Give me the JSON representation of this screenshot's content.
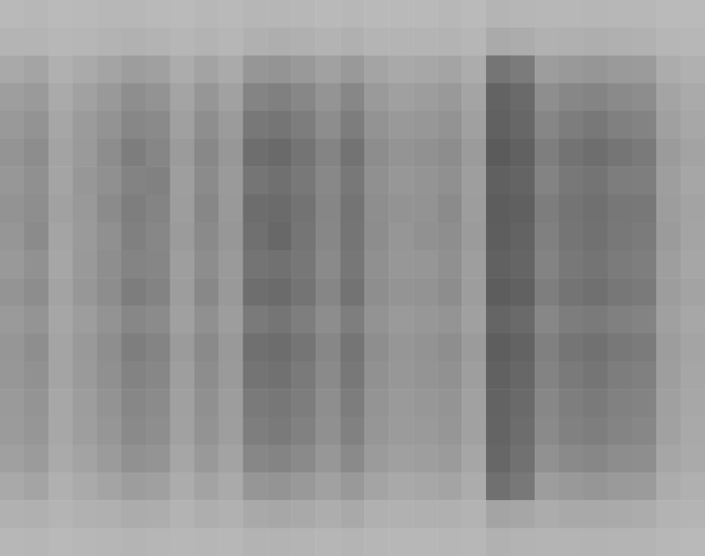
{
  "chart_data": {
    "type": "heatmap",
    "tick_labels": false,
    "grid": false,
    "color_range": [
      0,
      100
    ],
    "cells": [
      [
        16,
        17,
        15,
        16,
        17,
        17,
        16,
        15,
        17,
        16,
        18,
        18,
        17,
        16,
        17,
        16,
        16,
        16,
        17,
        15,
        19,
        18,
        17,
        17,
        18,
        17,
        17,
        15,
        15
      ],
      [
        19,
        19,
        17,
        18,
        20,
        21,
        20,
        18,
        20,
        18,
        22,
        23,
        22,
        20,
        22,
        19,
        19,
        19,
        20,
        18,
        26,
        25,
        21,
        22,
        23,
        22,
        21,
        18,
        17
      ],
      [
        27,
        30,
        22,
        26,
        30,
        35,
        33,
        25,
        31,
        26,
        40,
        41,
        38,
        32,
        38,
        30,
        27,
        28,
        30,
        25,
        62,
        58,
        35,
        38,
        40,
        37,
        36,
        25,
        22
      ],
      [
        34,
        37,
        26,
        32,
        38,
        45,
        42,
        30,
        40,
        32,
        52,
        55,
        50,
        41,
        50,
        37,
        33,
        35,
        38,
        30,
        75,
        70,
        45,
        50,
        52,
        48,
        46,
        30,
        26
      ],
      [
        38,
        42,
        29,
        36,
        42,
        50,
        48,
        33,
        45,
        36,
        60,
        62,
        57,
        46,
        57,
        42,
        38,
        39,
        42,
        33,
        76,
        72,
        51,
        57,
        60,
        55,
        53,
        33,
        28
      ],
      [
        41,
        46,
        31,
        37,
        46,
        57,
        51,
        36,
        49,
        39,
        67,
        70,
        63,
        52,
        64,
        46,
        41,
        43,
        46,
        36,
        80,
        76,
        56,
        64,
        67,
        62,
        59,
        36,
        31
      ],
      [
        39,
        44,
        30,
        39,
        44,
        53,
        54,
        34,
        47,
        37,
        62,
        66,
        60,
        49,
        60,
        44,
        39,
        41,
        44,
        34,
        77,
        74,
        53,
        60,
        63,
        57,
        56,
        34,
        29
      ],
      [
        42,
        45,
        32,
        38,
        47,
        56,
        52,
        35,
        50,
        38,
        68,
        69,
        64,
        51,
        63,
        45,
        42,
        42,
        47,
        35,
        79,
        77,
        57,
        63,
        66,
        61,
        60,
        35,
        31
      ],
      [
        40,
        47,
        30,
        37,
        44,
        55,
        50,
        36,
        48,
        39,
        66,
        71,
        62,
        50,
        62,
        46,
        40,
        43,
        45,
        36,
        78,
        75,
        55,
        62,
        65,
        60,
        58,
        36,
        30
      ],
      [
        38,
        43,
        29,
        38,
        45,
        52,
        51,
        34,
        46,
        37,
        63,
        65,
        61,
        48,
        61,
        44,
        39,
        40,
        44,
        34,
        76,
        73,
        53,
        60,
        63,
        58,
        56,
        34,
        29
      ],
      [
        41,
        46,
        31,
        39,
        46,
        57,
        53,
        35,
        49,
        38,
        67,
        69,
        63,
        51,
        64,
        45,
        41,
        42,
        46,
        35,
        79,
        76,
        56,
        63,
        66,
        61,
        59,
        35,
        31
      ],
      [
        37,
        41,
        29,
        35,
        42,
        50,
        47,
        33,
        44,
        35,
        59,
        62,
        56,
        46,
        56,
        42,
        37,
        39,
        41,
        33,
        73,
        70,
        50,
        57,
        59,
        55,
        53,
        33,
        28
      ],
      [
        40,
        45,
        30,
        38,
        45,
        56,
        52,
        36,
        48,
        38,
        66,
        68,
        62,
        50,
        62,
        45,
        40,
        42,
        45,
        36,
        78,
        75,
        55,
        62,
        65,
        60,
        58,
        35,
        30
      ],
      [
        39,
        43,
        30,
        37,
        44,
        53,
        50,
        34,
        46,
        37,
        63,
        65,
        59,
        48,
        60,
        43,
        39,
        41,
        43,
        34,
        76,
        72,
        53,
        59,
        62,
        57,
        55,
        34,
        29
      ],
      [
        37,
        41,
        28,
        35,
        42,
        50,
        47,
        33,
        44,
        35,
        59,
        61,
        57,
        45,
        57,
        41,
        37,
        39,
        41,
        32,
        75,
        70,
        50,
        56,
        59,
        54,
        53,
        33,
        28
      ],
      [
        36,
        40,
        28,
        34,
        40,
        48,
        45,
        32,
        42,
        34,
        56,
        59,
        54,
        44,
        54,
        40,
        36,
        37,
        40,
        32,
        74,
        68,
        48,
        54,
        56,
        52,
        50,
        32,
        27
      ],
      [
        33,
        36,
        26,
        31,
        36,
        43,
        41,
        29,
        38,
        31,
        50,
        52,
        48,
        39,
        48,
        36,
        33,
        34,
        36,
        29,
        72,
        65,
        43,
        48,
        50,
        46,
        45,
        29,
        26
      ],
      [
        27,
        30,
        22,
        26,
        30,
        35,
        33,
        25,
        31,
        26,
        40,
        41,
        38,
        32,
        38,
        30,
        27,
        28,
        30,
        25,
        66,
        60,
        35,
        38,
        40,
        37,
        36,
        25,
        22
      ],
      [
        21,
        22,
        19,
        21,
        22,
        25,
        24,
        20,
        23,
        21,
        27,
        28,
        27,
        24,
        27,
        22,
        21,
        22,
        22,
        20,
        30,
        29,
        25,
        27,
        27,
        26,
        25,
        20,
        19
      ],
      [
        17,
        18,
        16,
        17,
        18,
        19,
        18,
        17,
        18,
        17,
        20,
        20,
        19,
        18,
        19,
        18,
        17,
        17,
        18,
        17,
        21,
        20,
        19,
        19,
        20,
        19,
        19,
        17,
        16
      ]
    ]
  }
}
